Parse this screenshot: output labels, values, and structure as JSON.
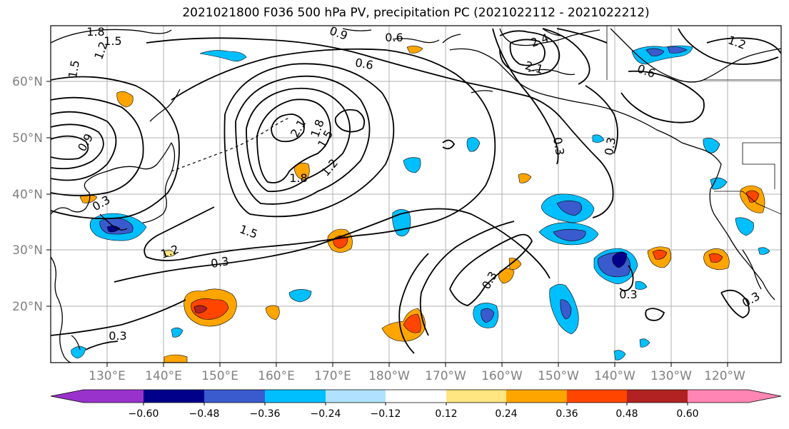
{
  "title": "2021021800 F036 500 hPa PV, precipitation PC (2021022112 - 2021022212)",
  "map": {
    "lon_labels": [
      "130°E",
      "140°E",
      "150°E",
      "160°E",
      "170°E",
      "180°W",
      "170°W",
      "160°W",
      "150°W",
      "140°W",
      "130°W",
      "120°W"
    ],
    "lat_labels": [
      "60°N",
      "50°N",
      "40°N",
      "30°N",
      "20°N"
    ],
    "contour_labels": [
      "1.8",
      "1.5",
      "1.2",
      "1.5",
      "0.9",
      "0.6",
      "0.6",
      "2.4",
      "2.1",
      "0.3",
      "0.6",
      "1.2",
      "0.3",
      "0.9",
      "1.2",
      "1.5",
      "1.8",
      "2.1",
      "1.8",
      "0.3",
      "1.5",
      "1.2",
      "0.3",
      "0.3",
      "0.3",
      "0.3",
      "0.3"
    ]
  },
  "colorbar": {
    "ticks": [
      "−0.60",
      "−0.48",
      "−0.36",
      "−0.24",
      "−0.12",
      "0.12",
      "0.24",
      "0.36",
      "0.48",
      "0.60"
    ],
    "colors": [
      "#9932cc",
      "#00008b",
      "#3a5bcd",
      "#00bfff",
      "#b0e2ff",
      "#ffffff",
      "#ffe680",
      "#ffa500",
      "#ff4500",
      "#b22222",
      "#ff85b4"
    ]
  }
}
